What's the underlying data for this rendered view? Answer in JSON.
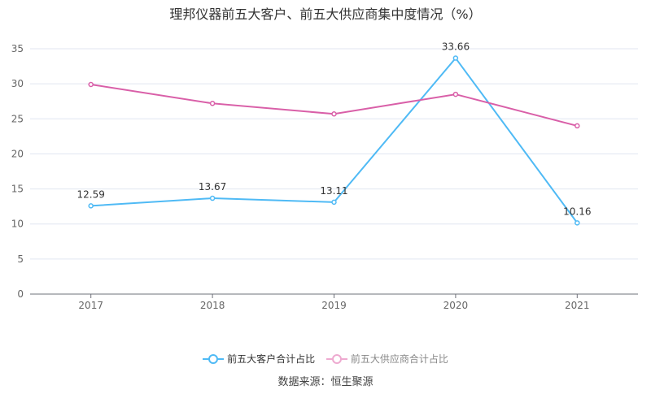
{
  "chart_data": {
    "type": "line",
    "title": "理邦仪器前五大客户、前五大供应商集中度情况（%）",
    "categories": [
      "2017",
      "2018",
      "2019",
      "2020",
      "2021"
    ],
    "ylim": [
      0,
      35
    ],
    "yticks": [
      0,
      5,
      10,
      15,
      20,
      25,
      30,
      35
    ],
    "grid": true,
    "legend_position": "bottom",
    "series": [
      {
        "name": "前五大客户合计占比",
        "color": "#4fbaf5",
        "values": [
          12.59,
          13.67,
          13.11,
          33.66,
          10.16
        ],
        "labels": [
          "12.59",
          "13.67",
          "13.11",
          "33.66",
          "10.16"
        ]
      },
      {
        "name": "前五大供应商合计占比",
        "color": "#d95fa8",
        "legend_color": "#eeaad0",
        "values": [
          29.9,
          27.2,
          25.7,
          28.5,
          24.0
        ]
      }
    ]
  },
  "source": "数据来源：恒生聚源"
}
